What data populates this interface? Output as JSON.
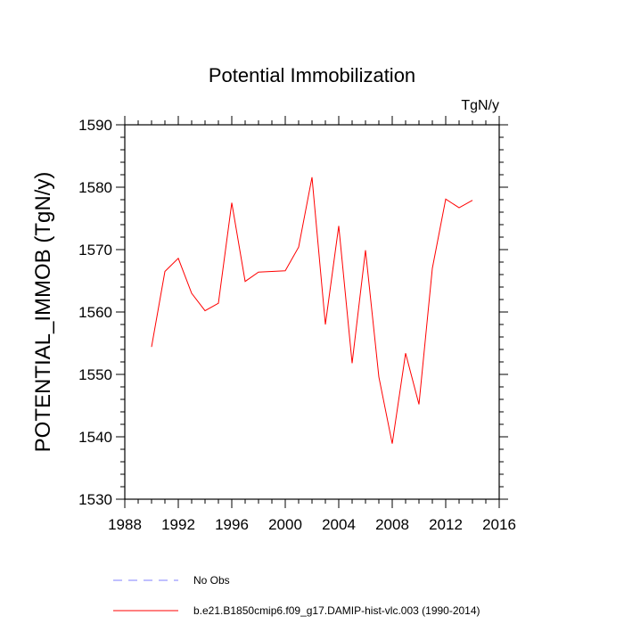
{
  "chart_data": {
    "type": "line",
    "title": "Potential Immobilization",
    "units_label": "TgN/y",
    "xlabel": "",
    "ylabel": "POTENTIAL_IMMOB  (TgN/y)",
    "xlim": [
      1988,
      2016
    ],
    "ylim": [
      1530,
      1590
    ],
    "x_ticks": [
      1988,
      1992,
      1996,
      2000,
      2004,
      2008,
      2012,
      2016
    ],
    "y_ticks": [
      1530,
      1540,
      1550,
      1560,
      1570,
      1580,
      1590
    ],
    "grid": false,
    "legend_position": "bottom",
    "series": [
      {
        "name": "b.e21.B1850cmip6.f09_g17.DAMIP-hist-vlc.003 (1990-2014)",
        "color": "#ff0000",
        "style": "solid",
        "x": [
          1990,
          1991,
          1992,
          1993,
          1994,
          1995,
          1996,
          1997,
          1998,
          1999,
          2000,
          2001,
          2002,
          2003,
          2004,
          2005,
          2006,
          2007,
          2008,
          2009,
          2010,
          2011,
          2012,
          2013,
          2014
        ],
        "values": [
          1554.4,
          1566.5,
          1568.6,
          1563.0,
          1560.2,
          1561.4,
          1577.5,
          1564.9,
          1566.4,
          1566.5,
          1566.6,
          1570.4,
          1581.6,
          1558.0,
          1573.8,
          1551.8,
          1569.9,
          1549.6,
          1538.9,
          1553.4,
          1545.2,
          1567.0,
          1578.1,
          1576.7,
          1577.9
        ]
      }
    ],
    "legend": [
      {
        "label": "No Obs",
        "color": "#8080ff",
        "style": "dashed"
      },
      {
        "label": "b.e21.B1850cmip6.f09_g17.DAMIP-hist-vlc.003 (1990-2014)",
        "color": "#ff0000",
        "style": "solid"
      }
    ]
  }
}
